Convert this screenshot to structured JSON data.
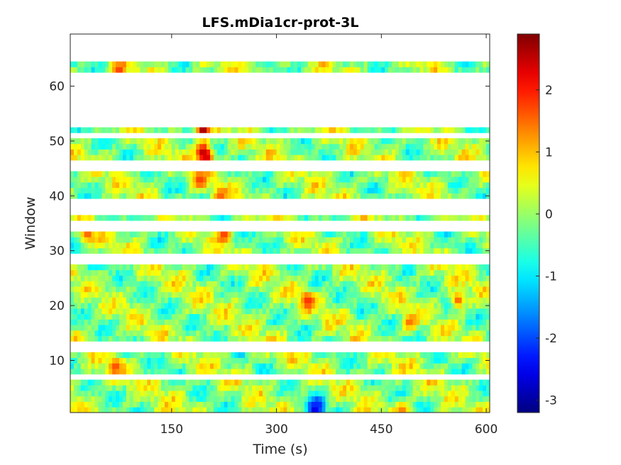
{
  "chart_data": {
    "type": "heatmap",
    "title": "LFS.mDia1cr-prot-3L",
    "xlabel": "Time (s)",
    "ylabel": "Window",
    "xlim": [
      5,
      605
    ],
    "ylim": [
      0.5,
      69.5
    ],
    "xticks": [
      150,
      300,
      450,
      600
    ],
    "xtick_labels": [
      "150",
      "300",
      "450",
      "600"
    ],
    "yticks": [
      10,
      20,
      30,
      40,
      50,
      60
    ],
    "ytick_labels": [
      "10",
      "20",
      "30",
      "40",
      "50",
      "60"
    ],
    "colormap": "jet",
    "clim": [
      -3.2,
      2.9
    ],
    "colorbar_ticks": [
      -3,
      -2,
      -1,
      0,
      1,
      2
    ],
    "colorbar_tick_labels": [
      "-3",
      "-2",
      "-1",
      "0",
      "1",
      "2"
    ],
    "time_step_s": 5,
    "empty_windows": [
      7,
      12,
      13,
      28,
      29,
      34,
      35,
      37,
      38,
      39,
      45,
      46,
      51,
      53,
      54,
      55,
      56,
      57,
      58,
      59,
      60,
      61,
      62,
      65,
      66,
      67,
      68,
      69
    ],
    "value_range_note": "values mostly between -1.2 and 1.5 with peaks near 2.8 (t≈195 s, windows 47-52) and minimum near -3 (t≈355 s, window 1)",
    "notable_values": [
      {
        "time": 195,
        "window": 52,
        "value": 2.8
      },
      {
        "time": 195,
        "window": 48,
        "value": 2.6
      },
      {
        "time": 200,
        "window": 47,
        "value": 2.4
      },
      {
        "time": 190,
        "window": 43,
        "value": 1.8
      },
      {
        "time": 220,
        "window": 40,
        "value": 1.6
      },
      {
        "time": 225,
        "window": 33,
        "value": 1.8
      },
      {
        "time": 30,
        "window": 33,
        "value": 1.6
      },
      {
        "time": 75,
        "window": 63,
        "value": 1.8
      },
      {
        "time": 70,
        "window": 9,
        "value": 1.7
      },
      {
        "time": 345,
        "window": 21,
        "value": 1.9
      },
      {
        "time": 490,
        "window": 17,
        "value": 1.5
      },
      {
        "time": 560,
        "window": 21,
        "value": 1.6
      },
      {
        "time": 355,
        "window": 1,
        "value": -3.0
      },
      {
        "time": 360,
        "window": 2,
        "value": -2.2
      },
      {
        "time": 480,
        "window": 1,
        "value": 1.4
      }
    ]
  }
}
